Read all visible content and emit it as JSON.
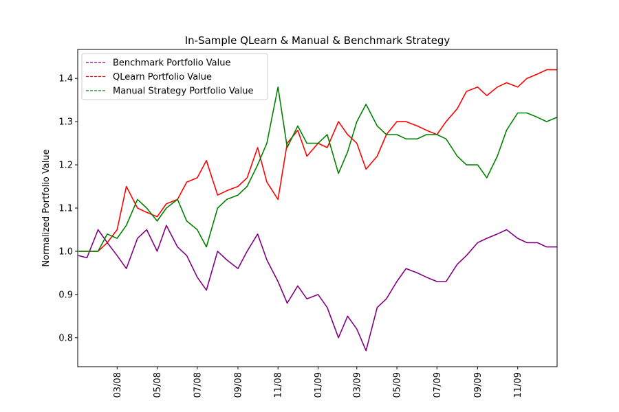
{
  "chart_data": {
    "type": "line",
    "title": "In-Sample QLearn & Manual & Benchmark Strategy",
    "xlabel": "",
    "ylabel": "Normalized Portfolio Value",
    "x_tick_labels": [
      "03/08",
      "05/08",
      "07/08",
      "09/08",
      "11/08",
      "01/09",
      "03/09",
      "05/09",
      "07/09",
      "09/09",
      "11/09"
    ],
    "y_ticks": [
      0.8,
      0.9,
      1.0,
      1.1,
      1.2,
      1.3,
      1.4
    ],
    "y_tick_labels": [
      "0.8",
      "0.9",
      "1.0",
      "1.1",
      "1.2",
      "1.3",
      "1.4"
    ],
    "xlim": [
      "2008-01-01",
      "2009-12-31"
    ],
    "ylim": [
      0.733,
      1.467
    ],
    "grid": false,
    "legend_position": "top-left",
    "legend": [
      {
        "label": "Benchmark Portfolio Value",
        "color": "#800080"
      },
      {
        "label": "QLearn Portfolio Value",
        "color": "#ff0000"
      },
      {
        "label": "Manual Strategy Portfolio Value",
        "color": "#008000"
      }
    ],
    "series": [
      {
        "name": "Benchmark Portfolio Value",
        "color": "#800080",
        "x": [
          "2008-01-02",
          "2008-01-15",
          "2008-02-01",
          "2008-02-15",
          "2008-03-01",
          "2008-03-15",
          "2008-04-01",
          "2008-04-15",
          "2008-05-01",
          "2008-05-15",
          "2008-06-01",
          "2008-06-15",
          "2008-07-01",
          "2008-07-15",
          "2008-08-01",
          "2008-08-15",
          "2008-09-01",
          "2008-09-15",
          "2008-10-01",
          "2008-10-15",
          "2008-11-01",
          "2008-11-15",
          "2008-12-01",
          "2008-12-15",
          "2009-01-01",
          "2009-01-15",
          "2009-02-01",
          "2009-02-15",
          "2009-03-01",
          "2009-03-15",
          "2009-04-01",
          "2009-04-15",
          "2009-05-01",
          "2009-05-15",
          "2009-06-01",
          "2009-06-15",
          "2009-07-01",
          "2009-07-15",
          "2009-08-01",
          "2009-08-15",
          "2009-09-01",
          "2009-09-15",
          "2009-10-01",
          "2009-10-15",
          "2009-11-01",
          "2009-11-15",
          "2009-12-01",
          "2009-12-15",
          "2009-12-31"
        ],
        "values": [
          0.99,
          0.985,
          1.05,
          1.02,
          0.99,
          0.96,
          1.03,
          1.05,
          1.0,
          1.06,
          1.01,
          0.99,
          0.94,
          0.91,
          1.0,
          0.98,
          0.96,
          1.0,
          1.04,
          0.98,
          0.93,
          0.88,
          0.92,
          0.89,
          0.9,
          0.87,
          0.8,
          0.85,
          0.82,
          0.77,
          0.87,
          0.89,
          0.93,
          0.96,
          0.95,
          0.94,
          0.93,
          0.93,
          0.97,
          0.99,
          1.02,
          1.03,
          1.04,
          1.05,
          1.03,
          1.02,
          1.02,
          1.01,
          1.01
        ]
      },
      {
        "name": "QLearn Portfolio Value",
        "color": "#ff0000",
        "x": [
          "2008-01-02",
          "2008-01-15",
          "2008-02-01",
          "2008-02-15",
          "2008-03-01",
          "2008-03-15",
          "2008-04-01",
          "2008-04-15",
          "2008-05-01",
          "2008-05-15",
          "2008-06-01",
          "2008-06-15",
          "2008-07-01",
          "2008-07-15",
          "2008-08-01",
          "2008-08-15",
          "2008-09-01",
          "2008-09-15",
          "2008-10-01",
          "2008-10-15",
          "2008-11-01",
          "2008-11-15",
          "2008-12-01",
          "2008-12-15",
          "2009-01-01",
          "2009-01-15",
          "2009-02-01",
          "2009-02-15",
          "2009-03-01",
          "2009-03-15",
          "2009-04-01",
          "2009-04-15",
          "2009-05-01",
          "2009-05-15",
          "2009-06-01",
          "2009-06-15",
          "2009-07-01",
          "2009-07-15",
          "2009-08-01",
          "2009-08-15",
          "2009-09-01",
          "2009-09-15",
          "2009-10-01",
          "2009-10-15",
          "2009-11-01",
          "2009-11-15",
          "2009-12-01",
          "2009-12-15",
          "2009-12-31"
        ],
        "values": [
          1.0,
          1.0,
          1.0,
          1.02,
          1.05,
          1.15,
          1.1,
          1.09,
          1.08,
          1.11,
          1.12,
          1.16,
          1.17,
          1.21,
          1.13,
          1.14,
          1.15,
          1.17,
          1.24,
          1.16,
          1.12,
          1.25,
          1.28,
          1.22,
          1.25,
          1.24,
          1.3,
          1.27,
          1.25,
          1.19,
          1.22,
          1.27,
          1.3,
          1.3,
          1.29,
          1.28,
          1.27,
          1.3,
          1.33,
          1.37,
          1.38,
          1.36,
          1.38,
          1.39,
          1.38,
          1.4,
          1.41,
          1.42,
          1.42
        ]
      },
      {
        "name": "Manual Strategy Portfolio Value",
        "color": "#008000",
        "x": [
          "2008-01-02",
          "2008-01-15",
          "2008-02-01",
          "2008-02-15",
          "2008-03-01",
          "2008-03-15",
          "2008-04-01",
          "2008-04-15",
          "2008-05-01",
          "2008-05-15",
          "2008-06-01",
          "2008-06-15",
          "2008-07-01",
          "2008-07-15",
          "2008-08-01",
          "2008-08-15",
          "2008-09-01",
          "2008-09-15",
          "2008-10-01",
          "2008-10-15",
          "2008-11-01",
          "2008-11-15",
          "2008-12-01",
          "2008-12-15",
          "2009-01-01",
          "2009-01-15",
          "2009-02-01",
          "2009-02-15",
          "2009-03-01",
          "2009-03-15",
          "2009-04-01",
          "2009-04-15",
          "2009-05-01",
          "2009-05-15",
          "2009-06-01",
          "2009-06-15",
          "2009-07-01",
          "2009-07-15",
          "2009-08-01",
          "2009-08-15",
          "2009-09-01",
          "2009-09-15",
          "2009-10-01",
          "2009-10-15",
          "2009-11-01",
          "2009-11-15",
          "2009-12-01",
          "2009-12-15",
          "2009-12-31"
        ],
        "values": [
          1.0,
          1.0,
          1.0,
          1.04,
          1.03,
          1.06,
          1.12,
          1.1,
          1.07,
          1.1,
          1.12,
          1.07,
          1.05,
          1.01,
          1.1,
          1.12,
          1.13,
          1.15,
          1.2,
          1.25,
          1.38,
          1.24,
          1.29,
          1.25,
          1.25,
          1.27,
          1.18,
          1.23,
          1.3,
          1.34,
          1.29,
          1.27,
          1.27,
          1.26,
          1.26,
          1.27,
          1.27,
          1.26,
          1.22,
          1.2,
          1.2,
          1.17,
          1.22,
          1.28,
          1.32,
          1.32,
          1.31,
          1.3,
          1.31
        ]
      }
    ]
  }
}
